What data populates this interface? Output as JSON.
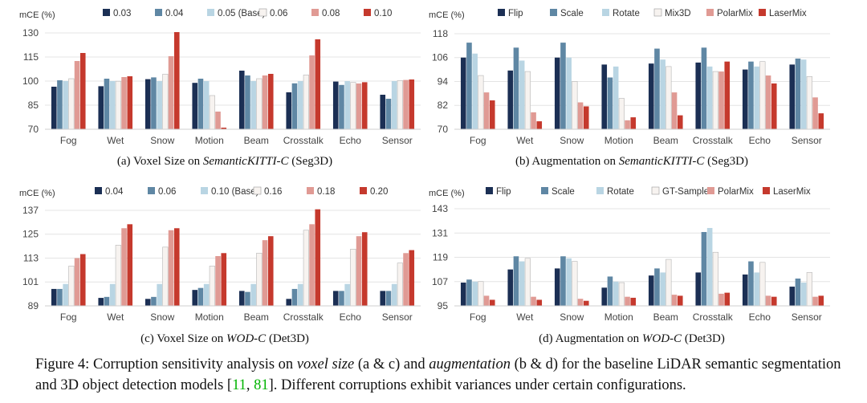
{
  "ylabel": "mCE (%)",
  "colors": {
    "voxel": [
      "#1b2f54",
      "#5f87a4",
      "#b9d5e3",
      "#f7f3f0",
      "#e09a94",
      "#c5392d"
    ],
    "aug": [
      "#1b2f54",
      "#5f87a4",
      "#b9d5e3",
      "#f7f3f0",
      "#e09a94",
      "#c5392d"
    ]
  },
  "caption": {
    "label": "Figure 4:",
    "p1": " Corruption sensitivity analysis on ",
    "em1": "voxel size",
    "p2": " (a & c) and ",
    "em2": "augmentation",
    "p3": " (b & d) for the baseline LiDAR semantic segmentation and 3D object detection models [",
    "ref1": "11",
    "sep": ", ",
    "ref2": "81",
    "p4": "]. Different corruptions exhibit variances under certain configurations."
  },
  "chart_data": [
    {
      "id": "a",
      "type": "bar",
      "caption_prefix": "(a)  Voxel Size on ",
      "caption_italic": "SemanticKITTI-C",
      "caption_suffix": " (Seg3D)",
      "ylabel": "mCE (%)",
      "ylim": [
        70,
        137
      ],
      "yticks": [
        70,
        85,
        100,
        115,
        130
      ],
      "categories": [
        "Fog",
        "Wet",
        "Snow",
        "Motion",
        "Beam",
        "Crosstalk",
        "Echo",
        "Sensor"
      ],
      "series": [
        {
          "name": "0.03",
          "values": [
            96.5,
            96.8,
            101.2,
            98.9,
            106.5,
            93.0,
            99.7,
            91.5
          ]
        },
        {
          "name": "0.04",
          "values": [
            100.5,
            101.5,
            102.3,
            101.5,
            103.5,
            98.6,
            97.6,
            89.0
          ]
        },
        {
          "name": "0.05 (Base)",
          "values": [
            100.0,
            100.0,
            100.0,
            100.0,
            100.0,
            100.0,
            100.0,
            100.0
          ]
        },
        {
          "name": "0.06",
          "values": [
            101.5,
            99.9,
            104.3,
            91.0,
            101.5,
            103.8,
            99.2,
            100.3
          ]
        },
        {
          "name": "0.08",
          "values": [
            112.5,
            102.5,
            115.5,
            81.0,
            103.5,
            116.0,
            98.5,
            100.7
          ]
        },
        {
          "name": "0.10",
          "values": [
            117.5,
            103.0,
            130.5,
            71.0,
            104.5,
            126.0,
            99.3,
            101.0
          ]
        }
      ]
    },
    {
      "id": "b",
      "type": "bar",
      "caption_prefix": "(b)  Augmentation on ",
      "caption_italic": "SemanticKITTI-C",
      "caption_suffix": " (Seg3D)",
      "ylabel": "mCE (%)",
      "ylim": [
        70,
        120
      ],
      "yticks": [
        70,
        82,
        94,
        106,
        118
      ],
      "categories": [
        "Fog",
        "Wet",
        "Snow",
        "Motion",
        "Beam",
        "Crosstalk",
        "Echo",
        "Sensor"
      ],
      "series": [
        {
          "name": "Flip",
          "values": [
            106.0,
            99.5,
            106.0,
            102.5,
            103.0,
            103.5,
            100.0,
            102.5
          ]
        },
        {
          "name": "Scale",
          "values": [
            113.5,
            111.0,
            113.5,
            96.0,
            110.5,
            111.0,
            104.0,
            105.5
          ]
        },
        {
          "name": "Rotate",
          "values": [
            108.0,
            104.5,
            106.0,
            101.5,
            105.0,
            101.5,
            101.5,
            105.0
          ]
        },
        {
          "name": "Mix3D",
          "values": [
            97.0,
            99.0,
            94.0,
            85.5,
            101.5,
            99.0,
            104.0,
            96.5
          ]
        },
        {
          "name": "PolarMix",
          "values": [
            88.5,
            78.5,
            83.5,
            74.5,
            88.5,
            99.0,
            97.0,
            86.0
          ]
        },
        {
          "name": "LaserMix",
          "values": [
            84.5,
            74.0,
            81.5,
            76.0,
            77.0,
            104.0,
            93.0,
            78.0
          ]
        }
      ]
    },
    {
      "id": "c",
      "type": "bar",
      "caption_prefix": "(c)  Voxel Size on ",
      "caption_italic": "WOD-C",
      "caption_suffix": " (Det3D)",
      "ylabel": "mCE (%)",
      "ylim": [
        89,
        139
      ],
      "yticks": [
        89,
        101,
        113,
        125,
        137
      ],
      "categories": [
        "Fog",
        "Wet",
        "Snow",
        "Motion",
        "Beam",
        "Crosstalk",
        "Echo",
        "Sensor"
      ],
      "series": [
        {
          "name": "0.04",
          "values": [
            97.5,
            93.0,
            92.5,
            97.0,
            96.5,
            92.5,
            96.5,
            96.5
          ]
        },
        {
          "name": "0.06",
          "values": [
            97.5,
            93.5,
            93.5,
            98.0,
            96.0,
            97.5,
            96.5,
            96.5
          ]
        },
        {
          "name": "0.10 (Base)",
          "values": [
            100.0,
            100.0,
            100.0,
            100.0,
            100.0,
            100.0,
            100.0,
            100.0
          ]
        },
        {
          "name": "0.16",
          "values": [
            109.0,
            119.5,
            118.5,
            109.0,
            115.5,
            127.0,
            117.5,
            110.5
          ]
        },
        {
          "name": "0.18",
          "values": [
            113.0,
            128.0,
            127.0,
            114.0,
            122.0,
            130.0,
            124.0,
            115.5
          ]
        },
        {
          "name": "0.20",
          "values": [
            115.0,
            130.0,
            128.0,
            115.5,
            124.0,
            137.5,
            126.0,
            117.0
          ]
        }
      ]
    },
    {
      "id": "d",
      "type": "bar",
      "caption_prefix": "(d)  Augmentation on ",
      "caption_italic": "WOD-C",
      "caption_suffix": " (Det3D)",
      "ylabel": "mCE (%)",
      "ylim": [
        95,
        145
      ],
      "yticks": [
        95,
        107,
        119,
        131,
        143
      ],
      "categories": [
        "Fog",
        "Wet",
        "Snow",
        "Motion",
        "Beam",
        "Crosstalk",
        "Echo",
        "Sensor"
      ],
      "series": [
        {
          "name": "Flip",
          "values": [
            106.5,
            113.0,
            113.5,
            104.0,
            110.0,
            111.5,
            110.5,
            104.5
          ]
        },
        {
          "name": "Scale",
          "values": [
            108.0,
            119.5,
            119.5,
            109.5,
            113.5,
            131.5,
            117.0,
            108.5
          ]
        },
        {
          "name": "Rotate",
          "values": [
            107.0,
            117.0,
            118.5,
            107.0,
            111.5,
            133.5,
            111.5,
            106.5
          ]
        },
        {
          "name": "GT-Sample",
          "values": [
            107.0,
            118.5,
            117.0,
            106.5,
            118.0,
            121.5,
            116.5,
            111.5
          ]
        },
        {
          "name": "PolarMix",
          "values": [
            100.0,
            99.5,
            98.5,
            99.5,
            100.5,
            101.0,
            100.0,
            99.5
          ]
        },
        {
          "name": "LaserMix",
          "values": [
            98.0,
            98.0,
            97.5,
            99.0,
            100.0,
            101.5,
            99.5,
            100.0
          ]
        }
      ]
    }
  ]
}
